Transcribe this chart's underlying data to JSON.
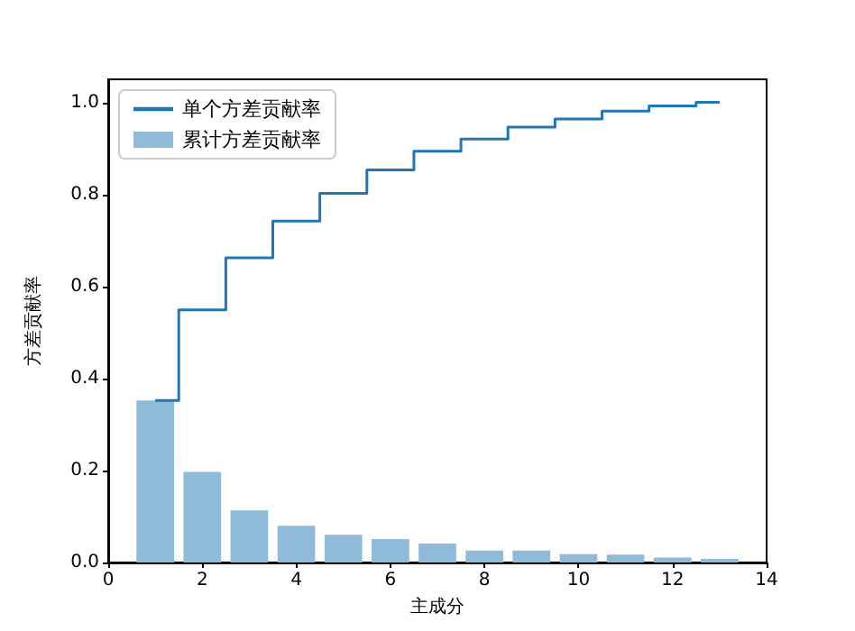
{
  "chart_data": {
    "type": "bar",
    "xlabel": "主成分",
    "ylabel": "方差贡献率",
    "series": [
      {
        "type": "step",
        "name": "单个方差贡献率",
        "color": "#1f77b4",
        "x": [
          1,
          2,
          3,
          4,
          5,
          6,
          7,
          8,
          9,
          10,
          11,
          12,
          13
        ],
        "values": [
          0.352,
          0.549,
          0.662,
          0.742,
          0.802,
          0.853,
          0.894,
          0.92,
          0.946,
          0.964,
          0.981,
          0.992,
          1.0
        ]
      },
      {
        "name": "累计方差贡献率",
        "color": "#8fbbd9",
        "x": [
          1,
          2,
          3,
          4,
          5,
          6,
          7,
          8,
          9,
          10,
          11,
          12,
          13
        ],
        "values": [
          0.352,
          0.197,
          0.113,
          0.08,
          0.06,
          0.051,
          0.041,
          0.026,
          0.026,
          0.018,
          0.017,
          0.011,
          0.008
        ]
      }
    ],
    "xlim": [
      0,
      14
    ],
    "xticks": [
      0,
      2,
      4,
      6,
      8,
      10,
      12,
      14
    ],
    "ylim": [
      0,
      1.05
    ],
    "yticks": [
      {
        "value": 0,
        "label": "0.0"
      },
      {
        "value": 0.2,
        "label": "0.2"
      },
      {
        "value": 0.4,
        "label": "0.4"
      },
      {
        "value": 0.6,
        "label": "0.6"
      },
      {
        "value": 0.8,
        "label": "0.8"
      },
      {
        "value": 1.0,
        "label": "1.0"
      }
    ],
    "legend": "top left"
  }
}
